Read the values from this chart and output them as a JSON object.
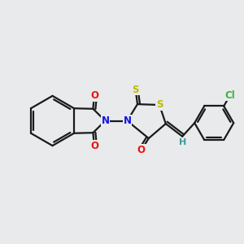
{
  "background_color": "#e8eaeb",
  "bond_color": "#1a1a1a",
  "bond_width": 1.6,
  "atom_colors": {
    "N": "#1010ee",
    "O": "#ee1010",
    "S_top": "#bbbb00",
    "S_ring": "#bbbb00",
    "Cl": "#3db33d",
    "H": "#3d9999",
    "C": "#1a1a1a"
  },
  "font_size": 8.5,
  "fig_width": 3.0,
  "fig_height": 3.0,
  "dpi": 100
}
